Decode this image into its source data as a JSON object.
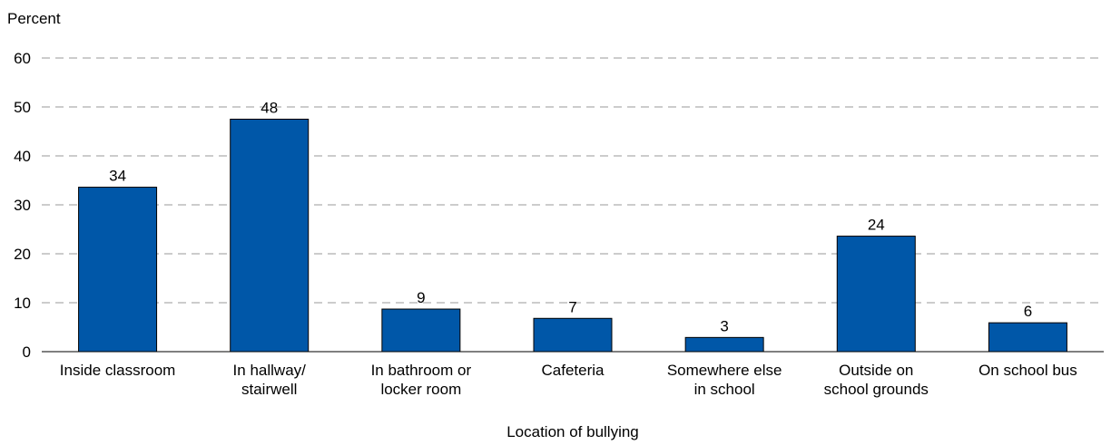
{
  "chart_data": {
    "type": "bar",
    "title": "",
    "ylabel": "Percent",
    "xlabel": "Location of bullying",
    "ylim": [
      0,
      60
    ],
    "yticks": [
      0,
      10,
      20,
      30,
      40,
      50,
      60
    ],
    "grid": true,
    "bar_color": "#0057A8",
    "categories": [
      [
        "Inside classroom"
      ],
      [
        "In hallway/",
        "stairwell"
      ],
      [
        "In bathroom or",
        "locker room"
      ],
      [
        "Cafeteria"
      ],
      [
        "Somewhere else",
        "in school"
      ],
      [
        "Outside on",
        "school grounds"
      ],
      [
        "On school bus"
      ]
    ],
    "values": [
      33.6,
      47.5,
      8.7,
      6.8,
      2.9,
      23.6,
      5.9
    ],
    "data_labels": [
      "34",
      "48",
      "9",
      "7",
      "3",
      "24",
      "6"
    ]
  }
}
